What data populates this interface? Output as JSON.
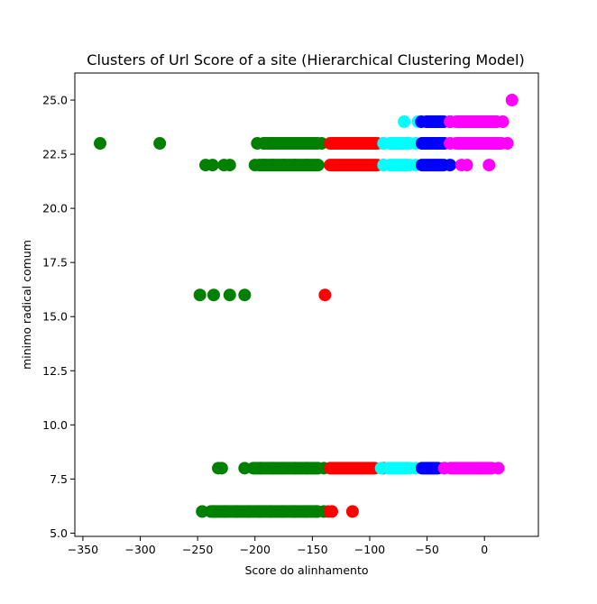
{
  "chart_data": {
    "type": "scatter",
    "title": "Clusters of Url Score of a site (Hierarchical Clustering Model)",
    "xlabel": "Score do alinhamento",
    "ylabel": "minimo radical comum",
    "xlim": [
      -357,
      47
    ],
    "ylim": [
      4.85,
      26.25
    ],
    "x_ticks": [
      -350,
      -300,
      -250,
      -200,
      -150,
      -100,
      -50,
      0
    ],
    "y_ticks": [
      5.0,
      7.5,
      10.0,
      12.5,
      15.0,
      17.5,
      20.0,
      22.5,
      25.0
    ],
    "grid": false,
    "legend": "none",
    "colors": {
      "green": "#008000",
      "red": "#ff0000",
      "cyan": "#00ffff",
      "blue": "#0000ff",
      "magenta": "#ff00ff"
    },
    "series": [
      {
        "color": "green",
        "points": [
          [
            -335,
            23
          ],
          [
            -283,
            23
          ],
          [
            -198,
            23
          ],
          [
            -190,
            23
          ],
          [
            -182,
            23
          ],
          [
            -170,
            23
          ],
          [
            -160,
            23
          ],
          [
            -148,
            23
          ],
          [
            -142,
            23
          ],
          [
            -243,
            22
          ],
          [
            -237,
            22
          ],
          [
            -227,
            22
          ],
          [
            -222,
            22
          ],
          [
            -200,
            22
          ],
          [
            -192,
            22
          ],
          [
            -185,
            22
          ],
          [
            -175,
            22
          ],
          [
            -165,
            22
          ],
          [
            -155,
            22
          ],
          [
            -145,
            22
          ],
          [
            -248,
            16
          ],
          [
            -236,
            16
          ],
          [
            -222,
            16
          ],
          [
            -209,
            16
          ],
          [
            -232,
            8
          ],
          [
            -229,
            8
          ],
          [
            -209,
            8
          ],
          [
            -195,
            8
          ],
          [
            -185,
            8
          ],
          [
            -175,
            8
          ],
          [
            -165,
            8
          ],
          [
            -155,
            8
          ],
          [
            -145,
            8
          ],
          [
            -140,
            8
          ],
          [
            -246,
            6
          ],
          [
            -236,
            6
          ],
          [
            -226,
            6
          ],
          [
            -216,
            6
          ],
          [
            -206,
            6
          ],
          [
            -196,
            6
          ],
          [
            -186,
            6
          ],
          [
            -176,
            6
          ],
          [
            -166,
            6
          ],
          [
            -156,
            6
          ],
          [
            -146,
            6
          ],
          [
            -140,
            6
          ]
        ],
        "segments": [
          [
            -198,
            -140,
            23
          ],
          [
            -202,
            -140,
            22
          ],
          [
            -207,
            -140,
            8
          ],
          [
            -244,
            -140,
            6
          ]
        ]
      },
      {
        "color": "red",
        "points": [
          [
            -139,
            16
          ],
          [
            -115,
            6
          ],
          [
            -133,
            6
          ],
          [
            -88,
            23
          ],
          [
            -88,
            22
          ],
          [
            -88,
            8
          ]
        ],
        "segments": [
          [
            -140,
            -88,
            23
          ],
          [
            -140,
            -88,
            22
          ],
          [
            -140,
            -90,
            8
          ],
          [
            -140,
            -133,
            6
          ]
        ]
      },
      {
        "color": "cyan",
        "points": [
          [
            -70,
            24
          ],
          [
            -58,
            24
          ],
          [
            -88,
            23
          ],
          [
            -60,
            23
          ],
          [
            -88,
            22
          ],
          [
            -60,
            22
          ],
          [
            -90,
            8
          ],
          [
            -60,
            8
          ]
        ],
        "segments": [
          [
            -88,
            -60,
            23
          ],
          [
            -88,
            -60,
            22
          ],
          [
            -90,
            -60,
            8
          ]
        ]
      },
      {
        "color": "blue",
        "points": [
          [
            -55,
            24
          ],
          [
            -30,
            24
          ],
          [
            -35,
            23
          ],
          [
            -30,
            22
          ],
          [
            -35,
            8
          ]
        ],
        "segments": [
          [
            -56,
            -30,
            24
          ],
          [
            -60,
            -30,
            23
          ],
          [
            -60,
            -30,
            22
          ],
          [
            -60,
            -35,
            8
          ]
        ]
      },
      {
        "color": "magenta",
        "points": [
          [
            24,
            25
          ],
          [
            -30,
            24
          ],
          [
            -5,
            24
          ],
          [
            16,
            24
          ],
          [
            -30,
            23
          ],
          [
            0,
            23
          ],
          [
            20,
            23
          ],
          [
            -20,
            22
          ],
          [
            4,
            22
          ],
          [
            -35,
            8
          ],
          [
            -5,
            8
          ],
          [
            12,
            8
          ]
        ],
        "segments": [
          [
            -30,
            16,
            24
          ],
          [
            -30,
            20,
            23
          ],
          [
            -20,
            -10,
            22
          ],
          [
            -35,
            12,
            8
          ]
        ]
      }
    ]
  }
}
